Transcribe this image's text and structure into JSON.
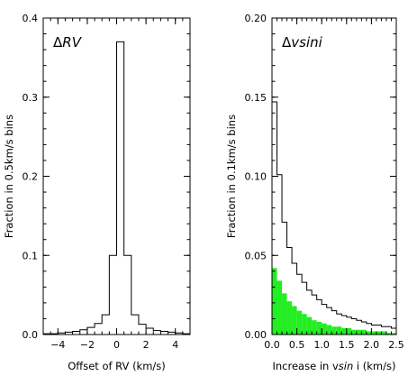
{
  "chart_data": [
    {
      "type": "histogram",
      "panel_label": "ΔRV",
      "panel_label_prefix": "Δ",
      "panel_label_var": "RV",
      "xlabel": "Offset of RV (km/s)",
      "ylabel": "Fraction in 0.5km/s bins",
      "xlim": [
        -5,
        5
      ],
      "ylim": [
        0,
        0.4
      ],
      "xticks": [
        -4,
        -2,
        0,
        2,
        4
      ],
      "xtick_labels": [
        "−4",
        "−2",
        "0",
        "2",
        "4"
      ],
      "yticks": [
        0.0,
        0.1,
        0.2,
        0.3,
        0.4
      ],
      "ytick_labels": [
        "0.0",
        "0.1",
        "0.2",
        "0.3",
        "0.4"
      ],
      "grid": false,
      "series": [
        {
          "style": "step-outline",
          "color": "#000000",
          "bin_edges": [
            -5.0,
            -4.5,
            -4.0,
            -3.5,
            -3.0,
            -2.5,
            -2.0,
            -1.5,
            -1.0,
            -0.5,
            0.0,
            0.5,
            1.0,
            1.5,
            2.0,
            2.5,
            3.0,
            3.5,
            4.0,
            4.5,
            5.0
          ],
          "values": [
            0.001,
            0.001,
            0.002,
            0.003,
            0.004,
            0.006,
            0.009,
            0.014,
            0.025,
            0.1,
            0.37,
            0.1,
            0.025,
            0.013,
            0.008,
            0.005,
            0.004,
            0.003,
            0.002,
            0.001
          ]
        }
      ]
    },
    {
      "type": "histogram",
      "panel_label": "Δvsini",
      "panel_label_prefix": "Δ",
      "panel_label_var": "vsini",
      "xlabel": "Increase in vsini (km/s)",
      "xlabel_parts": [
        "Increase in v",
        "sin",
        " i (km/s)"
      ],
      "ylabel": "Fraction in 0.1km/s bins",
      "xlim": [
        0,
        2.5
      ],
      "ylim": [
        0,
        0.2
      ],
      "xticks": [
        0.0,
        0.5,
        1.0,
        1.5,
        2.0,
        2.5
      ],
      "xtick_labels": [
        "0.0",
        "0.5",
        "1.0",
        "1.5",
        "2.0",
        "2.5"
      ],
      "yticks": [
        0.0,
        0.05,
        0.1,
        0.15,
        0.2
      ],
      "ytick_labels": [
        "0.00",
        "0.05",
        "0.10",
        "0.15",
        "0.20"
      ],
      "grid": false,
      "series": [
        {
          "style": "step-outline",
          "color": "#000000",
          "bin_edges": [
            0.0,
            0.1,
            0.2,
            0.3,
            0.4,
            0.5,
            0.6,
            0.7,
            0.8,
            0.9,
            1.0,
            1.1,
            1.2,
            1.3,
            1.4,
            1.5,
            1.6,
            1.7,
            1.8,
            1.9,
            2.0,
            2.1,
            2.2,
            2.3,
            2.4,
            2.5
          ],
          "values": [
            0.147,
            0.101,
            0.071,
            0.055,
            0.045,
            0.038,
            0.033,
            0.028,
            0.025,
            0.022,
            0.019,
            0.017,
            0.015,
            0.013,
            0.012,
            0.011,
            0.01,
            0.009,
            0.008,
            0.007,
            0.006,
            0.006,
            0.005,
            0.005,
            0.004
          ]
        },
        {
          "style": "filled",
          "color": "#22ee22",
          "bin_edges": [
            0.0,
            0.1,
            0.2,
            0.3,
            0.4,
            0.5,
            0.6,
            0.7,
            0.8,
            0.9,
            1.0,
            1.1,
            1.2,
            1.3,
            1.4,
            1.5,
            1.6,
            1.7,
            1.8,
            1.9,
            2.0,
            2.1,
            2.2,
            2.3,
            2.4,
            2.5
          ],
          "values": [
            0.042,
            0.034,
            0.026,
            0.021,
            0.018,
            0.015,
            0.013,
            0.011,
            0.009,
            0.008,
            0.007,
            0.006,
            0.005,
            0.005,
            0.004,
            0.004,
            0.003,
            0.003,
            0.003,
            0.002,
            0.002,
            0.002,
            0.002,
            0.001,
            0.001
          ]
        }
      ]
    }
  ]
}
